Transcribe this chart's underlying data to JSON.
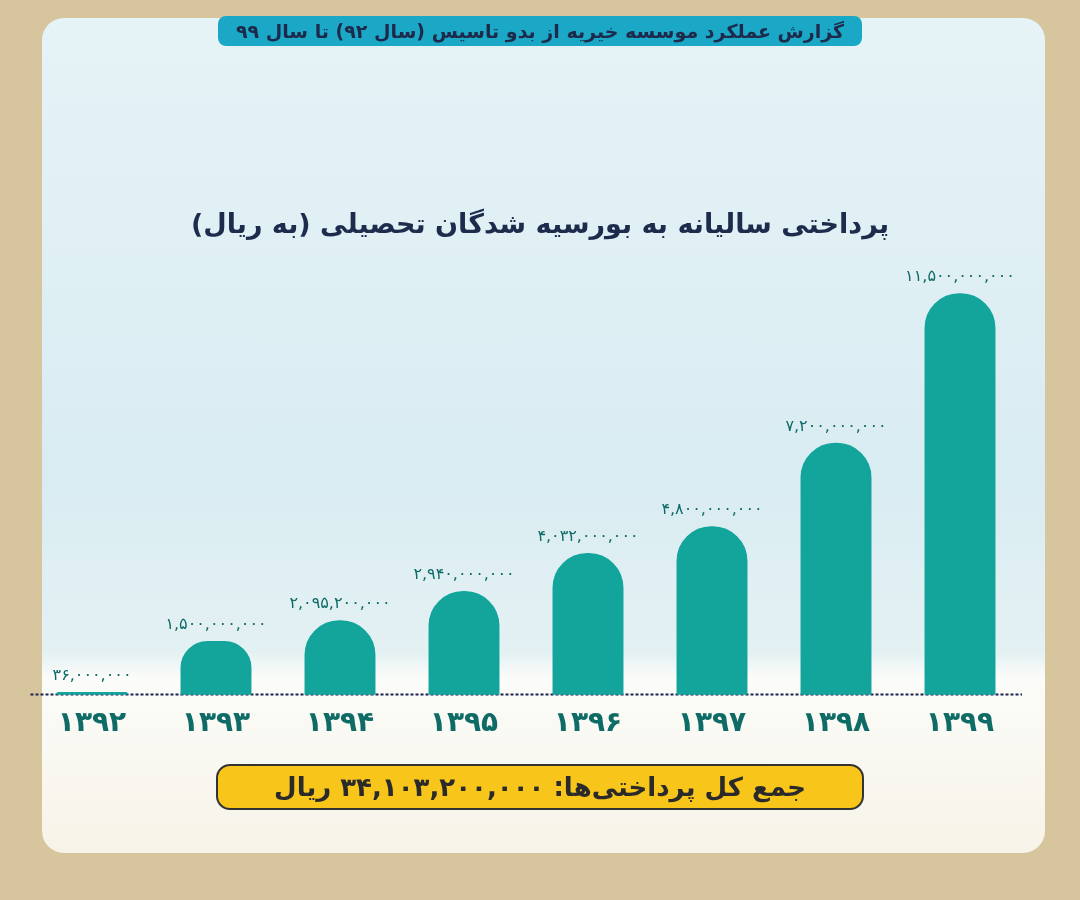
{
  "chart_data": {
    "type": "bar",
    "subtitle": "گزارش عملکرد موسسه خیریه از بدو تاسیس (سال ۹۲) تا سال ۹۹",
    "title": "پرداختی سالیانه به بورسیه شدگان تحصیلی (به ریال)",
    "categories": [
      "۱۳۹۲",
      "۱۳۹۳",
      "۱۳۹۴",
      "۱۳۹۵",
      "۱۳۹۶",
      "۱۳۹۷",
      "۱۳۹۸",
      "۱۳۹۹"
    ],
    "values": [
      36000000,
      1500000000,
      2095200000,
      2940000000,
      4032000000,
      4800000000,
      7200000000,
      11500000000
    ],
    "value_labels": [
      "۳۶,۰۰۰,۰۰۰",
      "۱,۵۰۰,۰۰۰,۰۰۰",
      "۲,۰۹۵,۲۰۰,۰۰۰",
      "۲,۹۴۰,۰۰۰,۰۰۰",
      "۴,۰۳۲,۰۰۰,۰۰۰",
      "۴,۸۰۰,۰۰۰,۰۰۰",
      "۷,۲۰۰,۰۰۰,۰۰۰",
      "۱۱,۵۰۰,۰۰۰,۰۰۰"
    ],
    "color": "#13a59c",
    "annotations": [
      "جمع کل پرداختی‌ها: ۳۴,۱۰۳,۲۰۰,۰۰۰ ریال"
    ]
  }
}
